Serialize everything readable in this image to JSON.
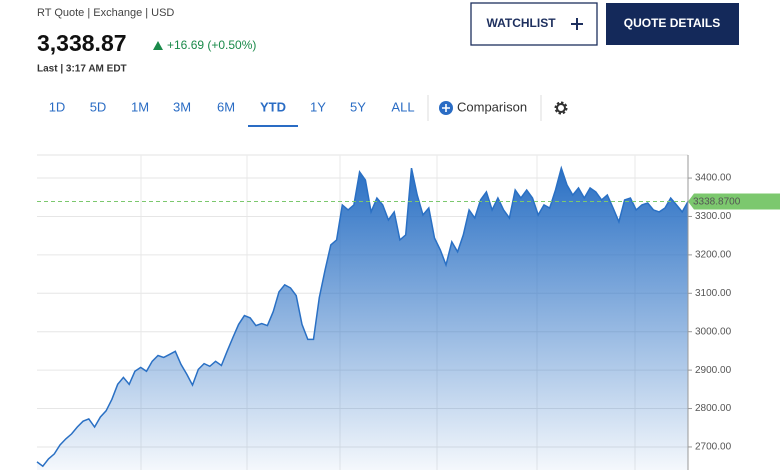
{
  "header": {
    "source": "RT Quote | Exchange | USD",
    "price": "3,338.87",
    "change": "+16.69 (+0.50%)",
    "time": "Last | 3:17 AM EDT",
    "buttons": [
      "WATCHLIST",
      "QUOTE DETAILS"
    ]
  },
  "tabs": {
    "items": [
      "1D",
      "5D",
      "1M",
      "3M",
      "6M",
      "YTD",
      "1Y",
      "5Y",
      "ALL"
    ],
    "active_index": 5,
    "comparison": "Comparison"
  },
  "chart_data": {
    "type": "area",
    "color": "#2a70c4",
    "values": [
      2661,
      2650,
      2669,
      2682,
      2705,
      2721,
      2734,
      2752,
      2767,
      2773,
      2752,
      2778,
      2794,
      2824,
      2863,
      2881,
      2863,
      2897,
      2907,
      2897,
      2923,
      2938,
      2933,
      2941,
      2949,
      2915,
      2889,
      2861,
      2902,
      2917,
      2910,
      2923,
      2912,
      2949,
      2985,
      3019,
      3042,
      3036,
      3016,
      3021,
      3016,
      3052,
      3104,
      3122,
      3114,
      3094,
      3019,
      2980,
      2980,
      3089,
      3161,
      3226,
      3239,
      3330,
      3317,
      3330,
      3416,
      3395,
      3312,
      3348,
      3330,
      3291,
      3312,
      3239,
      3252,
      3426,
      3356,
      3304,
      3322,
      3244,
      3213,
      3174,
      3234,
      3208,
      3252,
      3317,
      3296,
      3343,
      3364,
      3317,
      3348,
      3317,
      3296,
      3369,
      3348,
      3369,
      3348,
      3304,
      3330,
      3322,
      3369,
      3426,
      3382,
      3356,
      3374,
      3348,
      3374,
      3364,
      3343,
      3356,
      3322,
      3286,
      3343,
      3348,
      3317,
      3330,
      3335,
      3317,
      3312,
      3322,
      3348,
      3330,
      3312,
      3338.87
    ],
    "ylim": [
      2640,
      3460
    ],
    "yticks": [
      {
        "value": 2700,
        "label": "2700.00"
      },
      {
        "value": 2800,
        "label": "2800.00"
      },
      {
        "value": 2900,
        "label": "2900.00"
      },
      {
        "value": 3000,
        "label": "3000.00"
      },
      {
        "value": 3100,
        "label": "3100.00"
      },
      {
        "value": 3200,
        "label": "3200.00"
      },
      {
        "value": 3300,
        "label": "3300.00"
      },
      {
        "value": 3400,
        "label": "3400.00"
      }
    ],
    "grid": true,
    "reference_line": {
      "value": 3338.87,
      "label": "3338.8700",
      "color": "#7cc86e"
    }
  }
}
